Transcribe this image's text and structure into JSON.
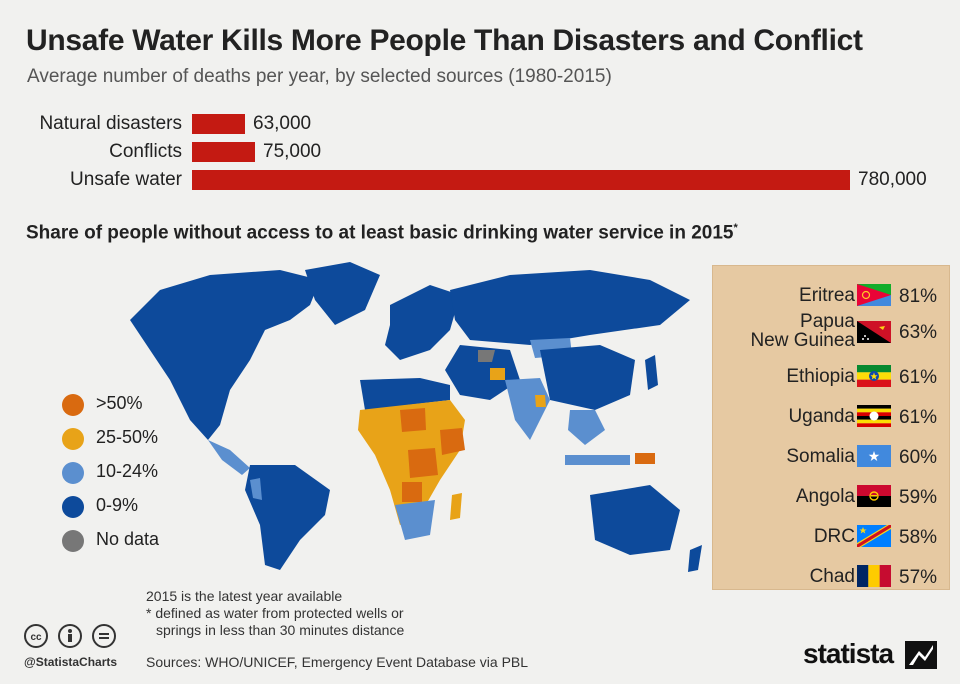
{
  "title": "Unsafe Water Kills More People Than Disasters and Conflict",
  "subtitle": "Average number of deaths per year, by selected sources (1980-2015)",
  "colors": {
    "bar": "#c41a12",
    "over50": "#d96a10",
    "25to50": "#e8a318",
    "10to24": "#5b8fcf",
    "0to9": "#0d4a9b",
    "nodata": "#777777",
    "panel": "#e6c9a2"
  },
  "chart_data": [
    {
      "type": "bar",
      "orientation": "horizontal",
      "categories": [
        "Natural disasters",
        "Conflicts",
        "Unsafe water"
      ],
      "values": [
        63000,
        75000,
        780000
      ],
      "value_labels": [
        "63,000",
        "75,000",
        "780,000"
      ]
    },
    {
      "type": "choropleth",
      "title": "Share of people without access to at least basic drinking water service in 2015",
      "title_mark": "*",
      "legend": [
        {
          "label": ">50%",
          "color_key": "over50"
        },
        {
          "label": "25-50%",
          "color_key": "25to50"
        },
        {
          "label": "10-24%",
          "color_key": "10to24"
        },
        {
          "label": "0-9%",
          "color_key": "0to9"
        },
        {
          "label": "No data",
          "color_key": "nodata"
        }
      ],
      "top_countries": [
        {
          "country": "Eritrea",
          "value": 81,
          "label": "81%"
        },
        {
          "country": "Papua\nNew Guinea",
          "value": 63,
          "label": "63%"
        },
        {
          "country": "Ethiopia",
          "value": 61,
          "label": "61%"
        },
        {
          "country": "Uganda",
          "value": 61,
          "label": "61%"
        },
        {
          "country": "Somalia",
          "value": 60,
          "label": "60%"
        },
        {
          "country": "Angola",
          "value": 59,
          "label": "59%"
        },
        {
          "country": "DRC",
          "value": 58,
          "label": "58%"
        },
        {
          "country": "Chad",
          "value": 57,
          "label": "57%"
        }
      ]
    }
  ],
  "notes": {
    "line1": "2015 is the latest year available",
    "line2": "* defined as water from protected wells or",
    "line3": "springs in less than 30 minutes distance"
  },
  "source": "Sources: WHO/UNICEF, Emergency Event Database via PBL",
  "handle": "@StatistaCharts",
  "brand": "statista",
  "icons": [
    "cc-icon",
    "attribution-icon",
    "no-derivatives-icon",
    "statista-logo-icon"
  ]
}
